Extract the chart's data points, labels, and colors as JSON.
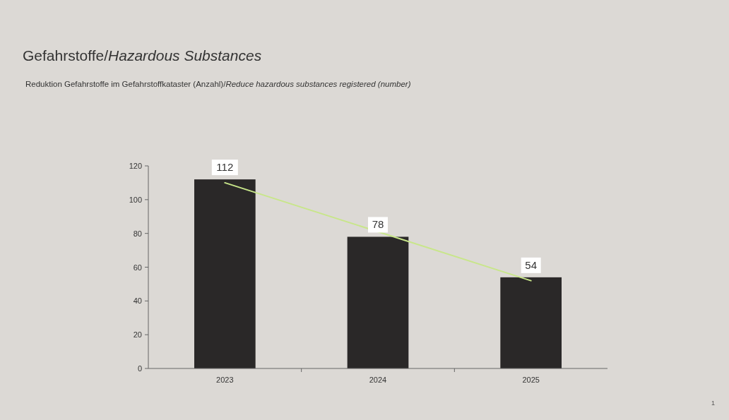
{
  "chart_data": {
    "type": "bar",
    "title": "Gefahrstoffe/Hazardous Substances",
    "subtitle": "Reduktion Gefahrstoffe im Gefahrstoffkataster (Anzahl)/Reduce hazardous substances registered (number)",
    "categories": [
      "2023",
      "2024",
      "2025"
    ],
    "series": [
      {
        "color": "#2a2828",
        "values": [
          112,
          78,
          54
        ],
        "value_labels": [
          "112",
          "78",
          "54"
        ]
      },
      {
        "type": "line",
        "color": "#c8e68a",
        "values": [
          110,
          81,
          52
        ]
      }
    ],
    "ylim": [
      0,
      120
    ],
    "yticks": [
      0,
      20,
      40,
      60,
      80,
      100,
      120
    ],
    "grid": false,
    "annotations": [
      "1"
    ]
  }
}
